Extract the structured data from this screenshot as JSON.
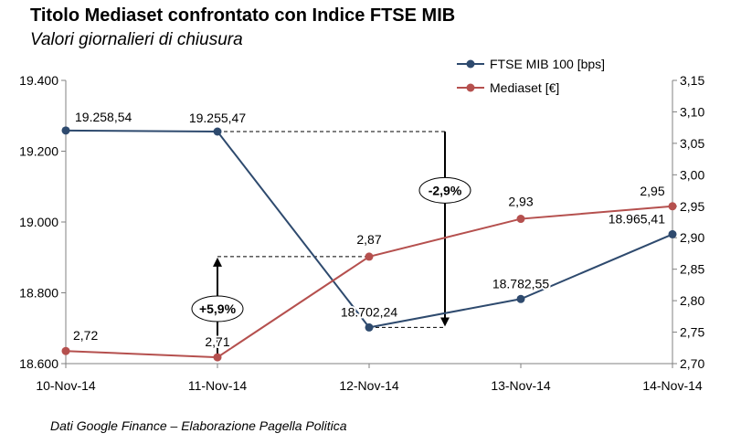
{
  "title": "Titolo Mediaset confrontato con Indice FTSE MIB",
  "subtitle": "Valori giornalieri di chiusura",
  "source": "Dati Google  Finance – Elaborazione Pagella  Politica",
  "chart_data": {
    "type": "line",
    "categories": [
      "10-Nov-14",
      "11-Nov-14",
      "12-Nov-14",
      "13-Nov-14",
      "14-Nov-14"
    ],
    "y_left": {
      "range": [
        18600,
        19400
      ],
      "ticks": [
        18600,
        18800,
        19000,
        19200,
        19400
      ],
      "tick_labels": [
        "18.600",
        "18.800",
        "19.000",
        "19.200",
        "19.400"
      ]
    },
    "y_right": {
      "range": [
        2.7,
        3.15
      ],
      "ticks": [
        2.7,
        2.75,
        2.8,
        2.85,
        2.9,
        2.95,
        3.0,
        3.05,
        3.1,
        3.15
      ],
      "tick_labels": [
        "2,70",
        "2,75",
        "2,80",
        "2,85",
        "2,90",
        "2,95",
        "3,00",
        "3,05",
        "3,10",
        "3,15"
      ]
    },
    "series": [
      {
        "name": "FTSE MIB 100 [bps]",
        "axis": "left",
        "color": "#2E4A6E",
        "values": [
          19258.54,
          19255.47,
          18702.24,
          18782.55,
          18965.41
        ],
        "labels": [
          "19.258,54",
          "19.255,47",
          "18.702,24",
          "18.782,55",
          "18.965,41"
        ]
      },
      {
        "name": "Mediaset [€]",
        "axis": "right",
        "color": "#B5504E",
        "values": [
          2.72,
          2.71,
          2.87,
          2.93,
          2.95
        ],
        "labels": [
          "2,72",
          "2,71",
          "2,87",
          "2,93",
          "2,95"
        ]
      }
    ],
    "annotations": [
      {
        "text": "+5,9%",
        "direction": "up",
        "series": "Mediaset [€]",
        "from_value": 2.71,
        "to_value": 2.87,
        "at": "11-Nov-14"
      },
      {
        "text": "-2,9%",
        "direction": "down",
        "series": "FTSE MIB 100 [bps]",
        "from_value": 19255.47,
        "to_value": 18702.24,
        "at": "between 12-Nov-14 and 13-Nov-14"
      }
    ],
    "grid": false,
    "legend": "top-right"
  }
}
